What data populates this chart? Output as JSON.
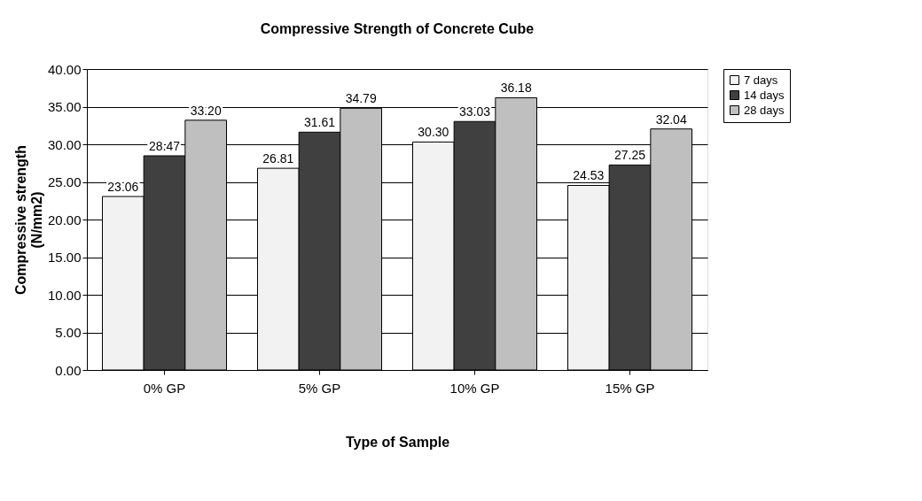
{
  "chart_data": {
    "type": "bar",
    "title": "Compressive Strength of Concrete Cube",
    "xlabel": "Type of Sample",
    "ylabel": "Compressive strength (N/mm2)",
    "categories": [
      "0% GP",
      "5% GP",
      "10% GP",
      "15% GP"
    ],
    "series": [
      {
        "name": "7 days",
        "color": "#f2f2f2",
        "values": [
          23.06,
          26.81,
          30.3,
          24.53
        ],
        "value_labels": [
          "23.06",
          "26.81",
          "30.30",
          "24.53"
        ]
      },
      {
        "name": "14 days",
        "color": "#404040",
        "values": [
          28.47,
          31.61,
          33.03,
          27.25
        ],
        "value_labels": [
          "28.47",
          "31.61",
          "33.03",
          "27.25"
        ]
      },
      {
        "name": "28 days",
        "color": "#bfbfbf",
        "values": [
          33.2,
          34.79,
          36.18,
          32.04
        ],
        "value_labels": [
          "33.20",
          "34.79",
          "36.18",
          "32.04"
        ]
      }
    ],
    "ylim": [
      0,
      40
    ],
    "yticks": [
      {
        "value": 0,
        "label": "0.00"
      },
      {
        "value": 5,
        "label": "5.00"
      },
      {
        "value": 10,
        "label": "10.00"
      },
      {
        "value": 15,
        "label": "15.00"
      },
      {
        "value": 20,
        "label": "20.00"
      },
      {
        "value": 25,
        "label": "25.00"
      },
      {
        "value": 30,
        "label": "30.00"
      },
      {
        "value": 35,
        "label": "35.00"
      },
      {
        "value": 40,
        "label": "40.00"
      }
    ],
    "grid": "y",
    "legend": "right"
  }
}
